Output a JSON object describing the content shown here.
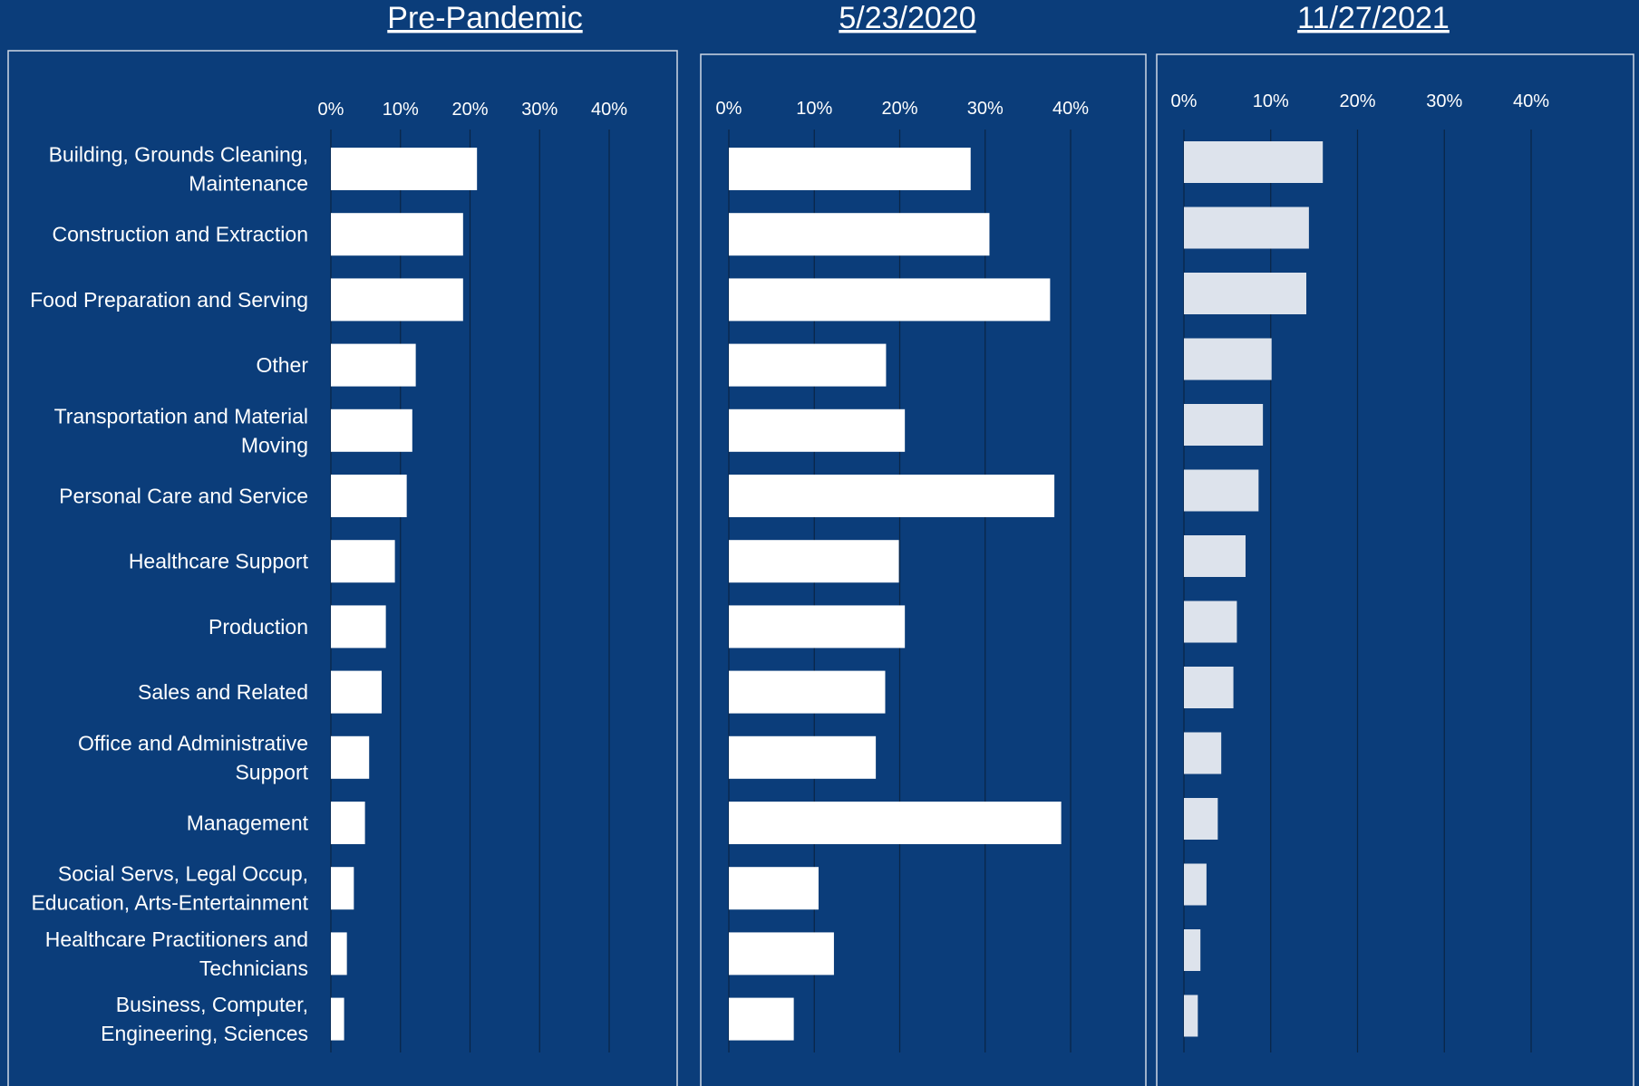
{
  "chart_data": {
    "type": "bar",
    "orientation": "horizontal",
    "categories": [
      "Building, Grounds Cleaning, Maintenance",
      "Construction and Extraction",
      "Food Preparation and Serving",
      "Other",
      "Transportation and Material Moving",
      "Personal Care and Service",
      "Healthcare Support",
      "Production",
      "Sales and Related",
      "Office and Administrative Support",
      "Management",
      "Social Servs, Legal Occup, Education, Arts-Entertainment",
      "Healthcare Practitioners and Technicians",
      "Business, Computer, Engineering, Sciences"
    ],
    "category_lines": [
      [
        "Building, Grounds Cleaning,",
        "Maintenance"
      ],
      [
        "Construction and Extraction"
      ],
      [
        "Food Preparation and Serving"
      ],
      [
        "Other"
      ],
      [
        "Transportation and Material",
        "Moving"
      ],
      [
        "Personal Care and Service"
      ],
      [
        "Healthcare Support"
      ],
      [
        "Production"
      ],
      [
        "Sales and Related"
      ],
      [
        "Office and Administrative",
        "Support"
      ],
      [
        "Management"
      ],
      [
        "Social Servs, Legal Occup,",
        "Education, Arts-Entertainment"
      ],
      [
        "Healthcare Practitioners and",
        "Technicians"
      ],
      [
        "Business, Computer,",
        "Engineering, Sciences"
      ]
    ],
    "x_ticks": [
      "0%",
      "10%",
      "20%",
      "30%",
      "40%"
    ],
    "xlim": [
      0,
      40
    ],
    "grid": true,
    "series": [
      {
        "name": "Pre-Pandemic",
        "bar_color": "#ffffff",
        "values": [
          21,
          19,
          19,
          12.2,
          11.7,
          10.9,
          9.2,
          7.9,
          7.3,
          5.5,
          4.9,
          3.3,
          2.3,
          1.9
        ]
      },
      {
        "name": "5/23/2020",
        "bar_color": "#ffffff",
        "values": [
          28.3,
          30.5,
          37.6,
          18.4,
          20.6,
          38.1,
          19.9,
          20.6,
          18.3,
          17.2,
          38.9,
          10.5,
          12.3,
          7.6
        ]
      },
      {
        "name": "11/27/2021",
        "bar_color": "#dde3ec",
        "values": [
          16,
          14.4,
          14.1,
          10.1,
          9.1,
          8.6,
          7.1,
          6.1,
          5.7,
          4.3,
          3.9,
          2.6,
          1.9,
          1.6
        ]
      }
    ]
  }
}
